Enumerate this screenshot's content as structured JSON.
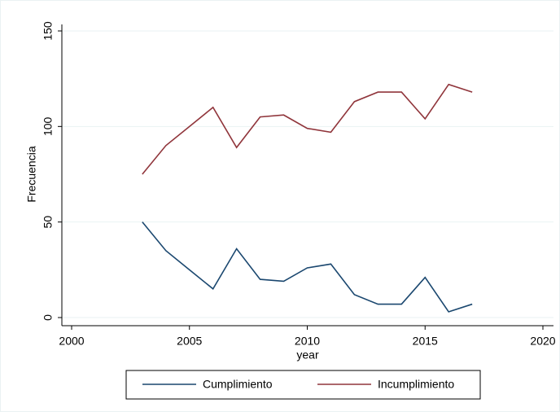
{
  "chart_data": {
    "type": "line",
    "x_label": "year",
    "y_label": "Frecuencia",
    "x": [
      2003,
      2004,
      2005,
      2006,
      2007,
      2008,
      2009,
      2010,
      2011,
      2012,
      2013,
      2014,
      2015,
      2016,
      2017
    ],
    "series": [
      {
        "name": "Cumplimiento",
        "color": "#1a476f",
        "values": [
          50,
          35,
          25,
          15,
          36,
          20,
          19,
          26,
          28,
          12,
          7,
          7,
          21,
          3,
          7
        ]
      },
      {
        "name": "Incumplimiento",
        "color": "#90353b",
        "values": [
          75,
          90,
          100,
          110,
          89,
          105,
          106,
          99,
          97,
          113,
          118,
          118,
          104,
          122,
          118
        ]
      }
    ],
    "xlim": [
      2000,
      2020
    ],
    "xticks": [
      2000,
      2005,
      2010,
      2015,
      2020
    ],
    "ylim": [
      0,
      150
    ],
    "yticks": [
      0,
      50,
      100,
      150
    ],
    "grid": true
  }
}
